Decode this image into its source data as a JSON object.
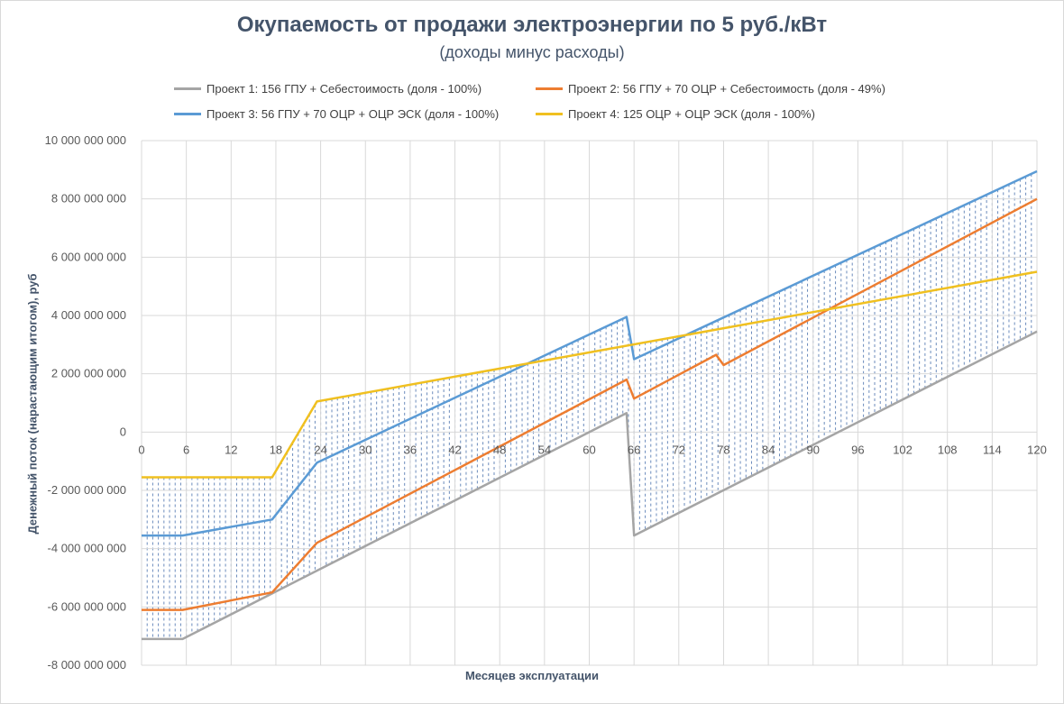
{
  "chart_data": {
    "type": "line",
    "title": "Окупаемость от продажи электроэнергии по 5 руб./кВт",
    "subtitle": "(доходы минус расходы)",
    "xlabel": "Месяцев эксплуатации",
    "ylabel": "Денежный поток (нарастающим итогом), руб",
    "xlim": [
      0,
      120
    ],
    "ylim": [
      -8000000000,
      10000000000
    ],
    "x_ticks": [
      0,
      6,
      12,
      18,
      24,
      30,
      36,
      42,
      48,
      54,
      60,
      66,
      72,
      78,
      84,
      90,
      96,
      102,
      108,
      114,
      120
    ],
    "x_tick_labels": [
      "0",
      "6",
      "12",
      "18",
      "24",
      "30",
      "36",
      "42",
      "48",
      "54",
      "60",
      "66",
      "72",
      "78",
      "84",
      "90",
      "96",
      "102",
      "108",
      "114",
      "120"
    ],
    "y_ticks": [
      -8000000000,
      -6000000000,
      -4000000000,
      -2000000000,
      0,
      2000000000,
      4000000000,
      6000000000,
      8000000000,
      10000000000
    ],
    "y_tick_labels": [
      "-8 000 000 000",
      "-6 000 000 000",
      "-4 000 000 000",
      "-2 000 000 000",
      "0",
      "2 000 000 000",
      "4 000 000 000",
      "6 000 000 000",
      "8 000 000 000",
      "10 000 000 000"
    ],
    "grid": true,
    "legend_position": "top",
    "band": {
      "description": "hatched area between lowest and highest project",
      "color": "#5b7fb5"
    },
    "series": [
      {
        "name": "Проект 1: 156 ГПУ + Себестоимость (доля - 100%)",
        "color": "#a5a5a5",
        "points": [
          [
            0,
            -7100000000
          ],
          [
            5.5,
            -7100000000
          ],
          [
            65,
            650000000
          ],
          [
            66,
            -3550000000
          ],
          [
            120,
            3450000000
          ]
        ]
      },
      {
        "name": "Проект 2: 56 ГПУ + 70 ОЦР + Себестоимость (доля - 49%)",
        "color": "#ed7d31",
        "points": [
          [
            0,
            -6100000000
          ],
          [
            5.5,
            -6100000000
          ],
          [
            17.5,
            -5500000000
          ],
          [
            23.5,
            -3800000000
          ],
          [
            65,
            1800000000
          ],
          [
            66,
            1150000000
          ],
          [
            77,
            2650000000
          ],
          [
            78,
            2300000000
          ],
          [
            120,
            8000000000
          ]
        ]
      },
      {
        "name": "Проект 3: 56 ГПУ + 70 ОЦР + ОЦР ЭСК (доля - 100%)",
        "color": "#5b9bd5",
        "points": [
          [
            0,
            -3550000000
          ],
          [
            5.5,
            -3550000000
          ],
          [
            17.5,
            -3000000000
          ],
          [
            23.5,
            -1050000000
          ],
          [
            65,
            3950000000
          ],
          [
            66,
            2500000000
          ],
          [
            120,
            8950000000
          ]
        ]
      },
      {
        "name": "Проект 4: 125 ОЦР + ОЦР ЭСК (доля - 100%)",
        "color": "#f0c020",
        "points": [
          [
            0,
            -1550000000
          ],
          [
            17.5,
            -1550000000
          ],
          [
            23.5,
            1050000000
          ],
          [
            120,
            5500000000
          ]
        ]
      }
    ]
  }
}
